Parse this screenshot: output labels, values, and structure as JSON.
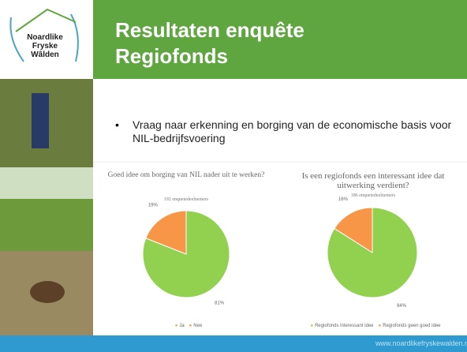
{
  "logo": {
    "lines": [
      "Noardlike",
      "Fryske",
      "Wâlden"
    ]
  },
  "header": {
    "title": "Resultaten enquête Regiofonds"
  },
  "bullets": [
    "Vraag naar erkenning en borging van de economische basis voor NIL-bedrijfsvoering"
  ],
  "footer": "www.noardlikefryskewalden.nl",
  "chart_data": [
    {
      "type": "pie",
      "title": "Goed idee om borging van NIL nader uit te werken?",
      "subtitle": "192 enquetedeelnemers",
      "categories": [
        "Ja",
        "Nee"
      ],
      "values": [
        81,
        19
      ],
      "value_labels": [
        "81%",
        "19%"
      ],
      "colors": [
        "#92d050",
        "#f79646"
      ]
    },
    {
      "type": "pie",
      "title": "Is een regiofonds een interessant idee dat uitwerking verdient?",
      "subtitle": "186 enquetedeelnemers",
      "categories": [
        "Regiofonds interessant idee",
        "Regiofonds geen goed idee"
      ],
      "values": [
        84,
        16
      ],
      "value_labels": [
        "84%",
        "16%"
      ],
      "colors": [
        "#92d050",
        "#f79646"
      ]
    }
  ]
}
